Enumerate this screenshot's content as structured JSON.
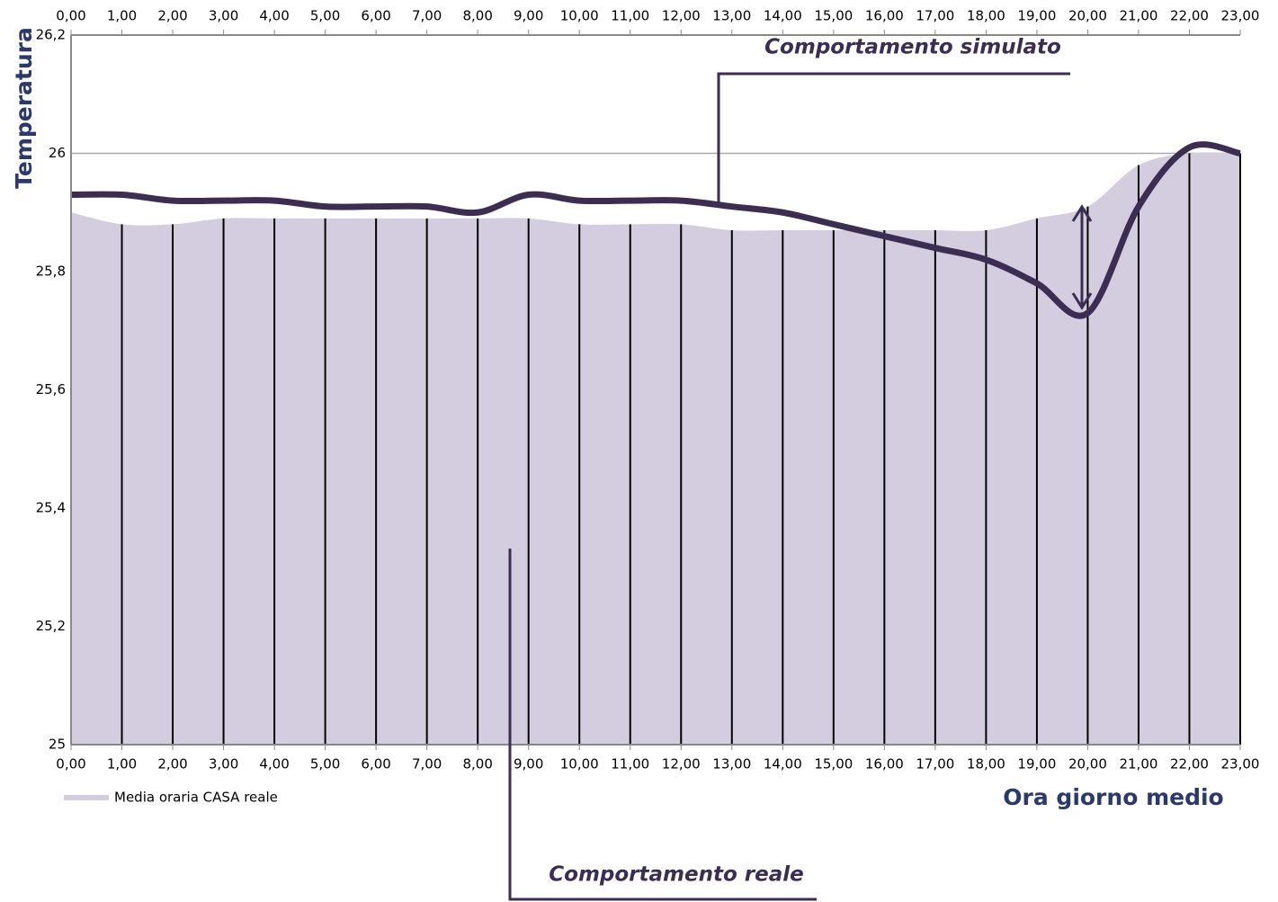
{
  "chart_data": {
    "type": "line",
    "y_label": "Temperatura",
    "x_label": "Ora giorno medio",
    "x": [
      0,
      1,
      2,
      3,
      4,
      5,
      6,
      7,
      8,
      9,
      10,
      11,
      12,
      13,
      14,
      15,
      16,
      17,
      18,
      19,
      20,
      21,
      22,
      23
    ],
    "series": [
      {
        "name": "Media oraria CASA reale",
        "kind": "area",
        "color": "#d3cddf",
        "values": [
          25.9,
          25.88,
          25.88,
          25.89,
          25.89,
          25.89,
          25.89,
          25.89,
          25.89,
          25.89,
          25.88,
          25.88,
          25.88,
          25.87,
          25.87,
          25.87,
          25.87,
          25.87,
          25.87,
          25.89,
          25.91,
          25.98,
          26.0,
          26.0
        ]
      },
      {
        "kind": "line",
        "color": "#3b2e52",
        "values": [
          25.93,
          25.93,
          25.92,
          25.92,
          25.92,
          25.91,
          25.91,
          25.91,
          25.9,
          25.93,
          25.92,
          25.92,
          25.92,
          25.91,
          25.9,
          25.88,
          25.86,
          25.84,
          25.82,
          25.78,
          25.73,
          25.91,
          26.01,
          26.0
        ]
      }
    ],
    "annotations": [
      "Comportamento simulato",
      "Comportamento reale"
    ],
    "xlim": [
      0,
      23
    ],
    "xticks": [
      {
        "value": 0,
        "label": "0,00"
      },
      {
        "value": 1,
        "label": "1,00"
      },
      {
        "value": 2,
        "label": "2,00"
      },
      {
        "value": 3,
        "label": "3,00"
      },
      {
        "value": 4,
        "label": "4,00"
      },
      {
        "value": 5,
        "label": "5,00"
      },
      {
        "value": 6,
        "label": "6,00"
      },
      {
        "value": 7,
        "label": "7,00"
      },
      {
        "value": 8,
        "label": "8,00"
      },
      {
        "value": 9,
        "label": "9,00"
      },
      {
        "value": 10,
        "label": "10,00"
      },
      {
        "value": 11,
        "label": "11,00"
      },
      {
        "value": 12,
        "label": "12,00"
      },
      {
        "value": 13,
        "label": "13,00"
      },
      {
        "value": 14,
        "label": "14,00"
      },
      {
        "value": 15,
        "label": "15,00"
      },
      {
        "value": 16,
        "label": "16,00"
      },
      {
        "value": 17,
        "label": "17,00"
      },
      {
        "value": 18,
        "label": "18,00"
      },
      {
        "value": 19,
        "label": "19,00"
      },
      {
        "value": 20,
        "label": "20,00"
      },
      {
        "value": 21,
        "label": "21,00"
      },
      {
        "value": 22,
        "label": "22,00"
      },
      {
        "value": 23,
        "label": "23,00"
      }
    ],
    "ylim": [
      25,
      26.2
    ],
    "yticks": [
      25,
      {
        "value": 25.2,
        "label": "25,2"
      },
      {
        "value": 25.4,
        "label": "25,4"
      },
      {
        "value": 25.6,
        "label": "25,6"
      },
      {
        "value": 25.8,
        "label": "25,8"
      },
      26,
      {
        "value": 26.2,
        "label": "26,2"
      }
    ],
    "grid": true,
    "drop_lines": true
  }
}
